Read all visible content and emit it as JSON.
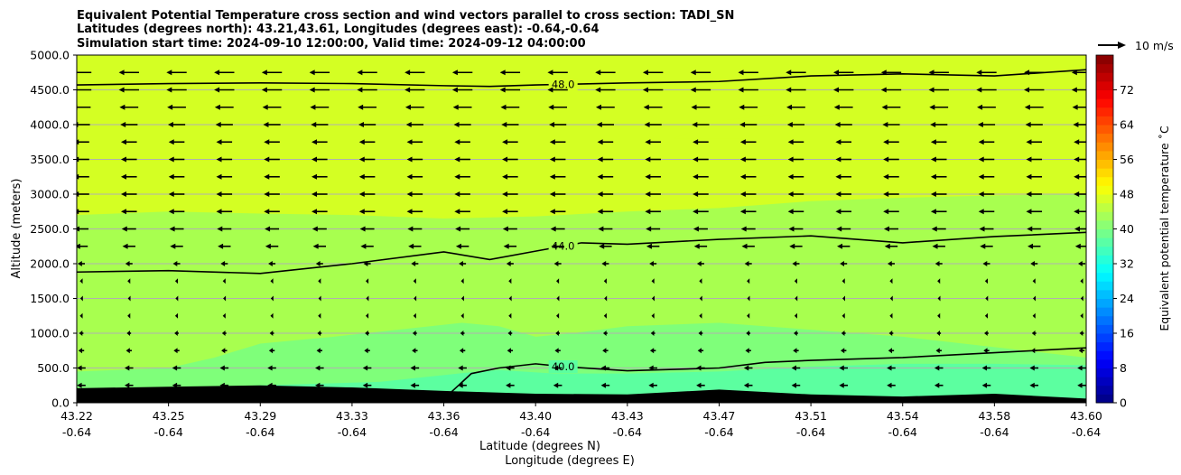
{
  "chart_data": {
    "type": "heatmap",
    "title_lines": [
      "Equivalent Potential Temperature cross section and wind vectors parallel to cross section: TADI_SN",
      "Latitudes (degrees north): 43.21,43.61, Longitudes (degrees east): -0.64,-0.64",
      "Simulation start time: 2024-09-10 12:00:00, Valid time: 2024-09-12 04:00:00"
    ],
    "xlabel_lines": [
      "Latitude (degrees N)",
      "Longitude (degrees E)"
    ],
    "ylabel": "Altitude (meters)",
    "x_tick_labels": [
      [
        "43.22",
        "-0.64"
      ],
      [
        "43.25",
        "-0.64"
      ],
      [
        "43.29",
        "-0.64"
      ],
      [
        "43.33",
        "-0.64"
      ],
      [
        "43.36",
        "-0.64"
      ],
      [
        "43.40",
        "-0.64"
      ],
      [
        "43.43",
        "-0.64"
      ],
      [
        "43.47",
        "-0.64"
      ],
      [
        "43.51",
        "-0.64"
      ],
      [
        "43.54",
        "-0.64"
      ],
      [
        "43.58",
        "-0.64"
      ],
      [
        "43.60",
        "-0.64"
      ]
    ],
    "xlim": [
      0,
      11
    ],
    "y_ticks": [
      0,
      500,
      1000,
      1500,
      2000,
      2500,
      3000,
      3500,
      4000,
      4500,
      5000
    ],
    "y_tick_labels": [
      "0.0",
      "500.0",
      "1000.0",
      "1500.0",
      "2000.0",
      "2500.0",
      "3000.0",
      "3500.0",
      "4000.0",
      "4500.0",
      "5000.0"
    ],
    "ylim": [
      0,
      5000
    ],
    "grid": "horizontal",
    "colorbar": {
      "label": "Equivalent potential temperature $^\\circ$C",
      "label_display": "Equivalent potential temperature ˚C",
      "ticks": [
        0,
        8,
        16,
        24,
        32,
        40,
        48,
        56,
        64,
        72
      ],
      "range": [
        0,
        80
      ],
      "colormap": "jet"
    },
    "quiver_key": "10 m/s",
    "field_regions": [
      {
        "theta_e": 47,
        "color": "#d4ff23",
        "from_alt": 2700,
        "to_alt": 5000
      },
      {
        "theta_e": 44,
        "color": "#a8ff4f",
        "from_alt": 500,
        "to_alt": 2700
      },
      {
        "theta_e": 41,
        "color": "#7fff7a",
        "from_alt": 200,
        "to_alt": 800
      },
      {
        "theta_e": 39,
        "color": "#5cffa0",
        "from_alt": 100,
        "to_alt": 500
      }
    ],
    "contours": [
      {
        "level_label": "48.0",
        "x": [
          0,
          1,
          2,
          3,
          4,
          4.5,
          5,
          6,
          7,
          8,
          9,
          10,
          11
        ],
        "y": [
          4570,
          4590,
          4600,
          4590,
          4560,
          4550,
          4570,
          4600,
          4620,
          4700,
          4730,
          4700,
          4790
        ]
      },
      {
        "level_label": "44.0",
        "x": [
          0,
          1,
          2,
          3,
          4,
          4.5,
          5,
          5.5,
          6,
          7,
          8,
          9,
          10,
          11
        ],
        "y": [
          1880,
          1900,
          1860,
          2000,
          2170,
          2060,
          2180,
          2300,
          2280,
          2350,
          2400,
          2300,
          2390,
          2450
        ]
      },
      {
        "level_label": "40.0",
        "x": [
          4.07,
          4.3,
          4.6,
          5,
          5.3,
          6,
          7,
          7.5,
          8,
          9,
          10,
          11
        ],
        "y": [
          140,
          420,
          500,
          560,
          520,
          460,
          500,
          580,
          610,
          650,
          720,
          790
        ]
      }
    ],
    "terrain_height": [
      {
        "x": 0,
        "y": 210
      },
      {
        "x": 1,
        "y": 230
      },
      {
        "x": 2,
        "y": 250
      },
      {
        "x": 3,
        "y": 220
      },
      {
        "x": 4,
        "y": 170
      },
      {
        "x": 5,
        "y": 130
      },
      {
        "x": 6,
        "y": 120
      },
      {
        "x": 7,
        "y": 190
      },
      {
        "x": 8,
        "y": 120
      },
      {
        "x": 9,
        "y": 90
      },
      {
        "x": 10,
        "y": 130
      },
      {
        "x": 11,
        "y": 60
      }
    ],
    "wind_rows": [
      {
        "alt": 5000,
        "u": -0.5
      },
      {
        "alt": 4750,
        "u": -1.4
      },
      {
        "alt": 4500,
        "u": -1.4
      },
      {
        "alt": 4250,
        "u": -1.3
      },
      {
        "alt": 4000,
        "u": -1.2
      },
      {
        "alt": 3750,
        "u": -1.1
      },
      {
        "alt": 3500,
        "u": -1.1
      },
      {
        "alt": 3250,
        "u": -1.1
      },
      {
        "alt": 3000,
        "u": -1.1
      },
      {
        "alt": 2750,
        "u": -1.1
      },
      {
        "alt": 2500,
        "u": -1.0
      },
      {
        "alt": 2250,
        "u": -0.9
      },
      {
        "alt": 2000,
        "u": -0.5
      },
      {
        "alt": 1750,
        "u": -0.2
      },
      {
        "alt": 1500,
        "u": -0.15
      },
      {
        "alt": 1250,
        "u": -0.2
      },
      {
        "alt": 1000,
        "u": -0.3
      },
      {
        "alt": 750,
        "u": -0.4
      },
      {
        "alt": 500,
        "u": -0.6
      },
      {
        "alt": 250,
        "u": -0.6
      }
    ]
  }
}
